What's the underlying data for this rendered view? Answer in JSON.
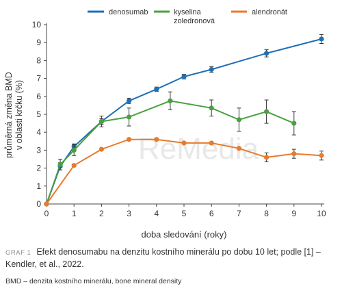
{
  "chart_data": {
    "type": "line",
    "xlabel": "doba sledování (roky)",
    "ylabel": "průměrná změna BMD v oblasti krčku (%)",
    "xlim": [
      0,
      10
    ],
    "ylim": [
      0,
      10
    ],
    "x_ticks": [
      0,
      1,
      2,
      3,
      4,
      5,
      6,
      7,
      8,
      9,
      10
    ],
    "y_ticks": [
      0,
      1,
      2,
      3,
      4,
      5,
      6,
      7,
      8,
      9,
      10
    ],
    "grid": false,
    "legend_position": "top",
    "series": [
      {
        "name": "denosumab",
        "color": "#1f6fb5",
        "x": [
          0,
          0.5,
          1,
          2,
          3,
          4,
          5,
          6,
          8,
          10
        ],
        "y": [
          0,
          2.1,
          3.2,
          4.6,
          5.75,
          6.4,
          7.1,
          7.5,
          8.4,
          9.2
        ],
        "err": [
          0,
          0.2,
          0.15,
          0.15,
          0.15,
          0.12,
          0.13,
          0.15,
          0.2,
          0.25
        ]
      },
      {
        "name": "kyselina zoledronová",
        "color": "#4aa040",
        "x": [
          0,
          0.5,
          1,
          2,
          3,
          4.5,
          6,
          7,
          8,
          9
        ],
        "y": [
          0,
          2.2,
          3.0,
          4.6,
          4.85,
          5.75,
          5.35,
          4.7,
          5.15,
          4.5
        ],
        "err": [
          0,
          0.3,
          0.3,
          0.3,
          0.5,
          0.5,
          0.45,
          0.65,
          0.65,
          0.65
        ]
      },
      {
        "name": "alendronát",
        "color": "#e87a2e",
        "x": [
          0,
          1,
          2,
          3,
          4,
          5,
          6,
          7,
          8,
          9,
          10
        ],
        "y": [
          0,
          2.15,
          3.05,
          3.6,
          3.6,
          3.4,
          3.4,
          3.1,
          2.6,
          2.8,
          2.7
        ],
        "err": [
          0,
          0,
          0,
          0,
          0,
          0,
          0,
          0,
          0.25,
          0.25,
          0.25
        ]
      }
    ]
  },
  "legend": {
    "denosumab": "denosumab",
    "zoledron_line1": "kyselina",
    "zoledron_line2": "zoledronová",
    "alendronat": "alendronát"
  },
  "axes": {
    "ylabel_line1": "průměrná změna BMD",
    "ylabel_line2": "v oblasti krčku (%)",
    "xlabel": "doba sledování (roky)"
  },
  "watermark": "ReMedia",
  "caption": {
    "label": "GRAF 1",
    "text": "Efekt denosumabu na denzitu kostního minerálu po dobu 10 let; podle [1] – Kendler, et al., 2022."
  },
  "footnote": "BMD – denzita kostního minerálu, bone mineral density"
}
